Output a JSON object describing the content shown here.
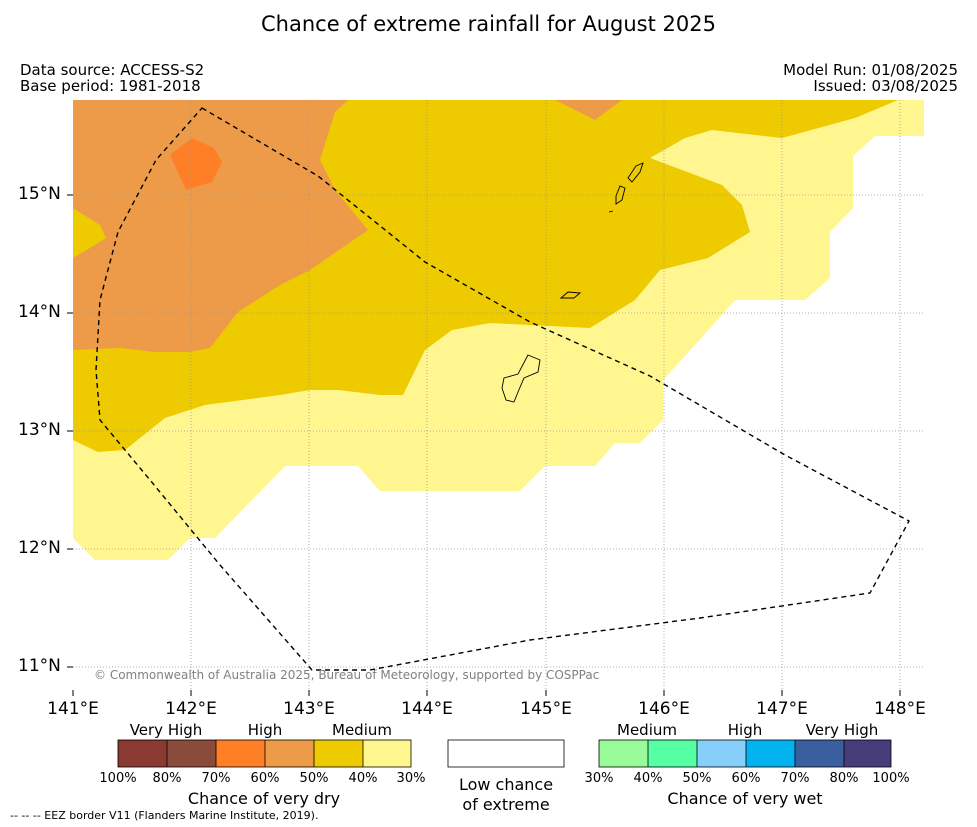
{
  "title": "Chance of extreme rainfall for August 2025",
  "meta": {
    "data_source": "Data source: ACCESS-S2",
    "base_period": "Base period: 1981-2018",
    "model_run": "Model Run: 01/08/2025",
    "issued": "Issued: 03/08/2025"
  },
  "map": {
    "lon_range": [
      141,
      148.2
    ],
    "lat_range": [
      10.8,
      15.8
    ],
    "lat_ticks": [
      "11°N",
      "12°N",
      "13°N",
      "14°N",
      "15°N"
    ],
    "lon_ticks": [
      "141°E",
      "142°E",
      "143°E",
      "144°E",
      "145°E",
      "146°E",
      "147°E",
      "148°E"
    ],
    "copyright": "© Commonwealth of Australia 2025, Bureau of Meteorology, supported by COSPPac",
    "fill_colors": {
      "high_dry": "#ff7f27",
      "moderate_dry": "#ed9b48",
      "medium_dry": "#eeca00",
      "low_dry": "#fff68f"
    }
  },
  "dry_colorbar": {
    "categories": [
      "Very High",
      "High",
      "Medium"
    ],
    "colors": [
      "#8b3a32",
      "#8b4b3a",
      "#ff7f27",
      "#ed9b48",
      "#eeca00",
      "#fff68f"
    ],
    "ticks": [
      "100%",
      "80%",
      "70%",
      "60%",
      "50%",
      "40%",
      "30%"
    ],
    "title": "Chance of very dry"
  },
  "low_chance": {
    "line1": "Low chance",
    "line2": "of extreme",
    "color": "#ffffff"
  },
  "wet_colorbar": {
    "categories": [
      "Medium",
      "High",
      "Very High"
    ],
    "colors": [
      "#98fb98",
      "#55ffa4",
      "#87cefa",
      "#00b2ee",
      "#3a5f9f",
      "#483d7b"
    ],
    "ticks": [
      "30%",
      "40%",
      "50%",
      "60%",
      "70%",
      "80%",
      "100%"
    ],
    "title": "Chance of very wet"
  },
  "footnote": "--  --  -- EEZ border V11 (Flanders Marine Institute, 2019)."
}
